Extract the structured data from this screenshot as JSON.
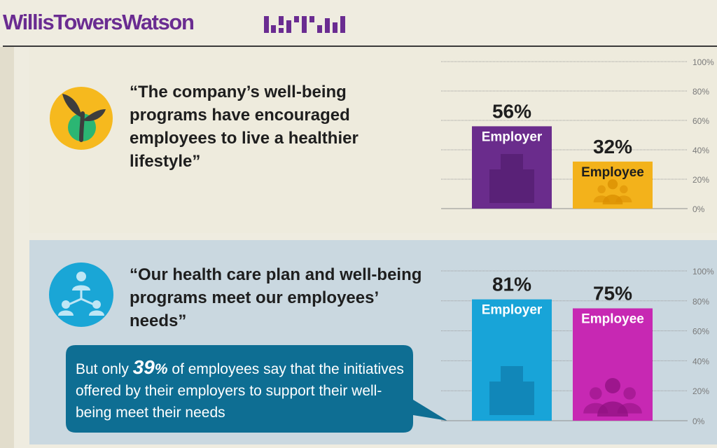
{
  "brand": {
    "name": "WillisTowersWatson",
    "color": "#6a2c91"
  },
  "panels": [
    {
      "icon": "plant-icon",
      "quote": "“The company’s well-being programs have encouraged employees to live a healthier lifestyle”"
    },
    {
      "icon": "people-network-icon",
      "quote": "“Our health care plan and well-being programs meet our employees’ needs”",
      "callout": {
        "prefix": "But only ",
        "stat": "39",
        "pct": "%",
        "suffix": " of employees say that the initiatives offered by their employers to support their well-being meet their needs",
        "color": "#0e6e93"
      }
    }
  ],
  "chart_data": [
    {
      "type": "bar",
      "categories": [
        "Employer",
        "Employee"
      ],
      "values": [
        56,
        32
      ],
      "value_labels": [
        "56%",
        "32%"
      ],
      "colors": [
        "#6a2c8c",
        "#f3b21b"
      ],
      "bar_icons": [
        "building-icon",
        "people-group-icon"
      ],
      "ylim": [
        0,
        100
      ],
      "yticks": [
        0,
        20,
        40,
        60,
        80,
        100
      ],
      "ytick_labels": [
        "0%",
        "20%",
        "40%",
        "60%",
        "80%",
        "100%"
      ],
      "grid": true
    },
    {
      "type": "bar",
      "categories": [
        "Employer",
        "Employee"
      ],
      "values": [
        81,
        75
      ],
      "value_labels": [
        "81%",
        "75%"
      ],
      "colors": [
        "#18a4d8",
        "#c728b3"
      ],
      "bar_icons": [
        "building-icon",
        "people-group-icon"
      ],
      "ylim": [
        0,
        100
      ],
      "yticks": [
        0,
        20,
        40,
        60,
        80,
        100
      ],
      "ytick_labels": [
        "0%",
        "20%",
        "40%",
        "60%",
        "80%",
        "100%"
      ],
      "grid": true
    }
  ]
}
